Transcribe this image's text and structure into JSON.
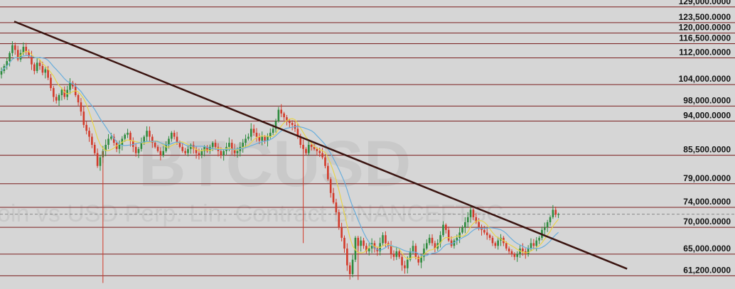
{
  "chart_data": {
    "type": "candlestick",
    "symbol_watermark": "BTCUSD",
    "subtitle_watermark": "oin vs USD Perp. Lin. Contract BINANCEFTSC",
    "colors": {
      "background": "#d6d6d6",
      "level_lines": "#7b1f1f",
      "trendline": "#3a1410",
      "up": "#2e8b3e",
      "down": "#d23a2a",
      "ma_fast": "#e8d44a",
      "ma_slow": "#6aaedc",
      "current_price_line": "#888888"
    },
    "y_axis": {
      "min": 59000,
      "max": 131500,
      "side": "right",
      "tick_labels": [
        {
          "value": 129000,
          "label": "129,000.0000"
        },
        {
          "value": 123500,
          "label": "123,500.0000"
        },
        {
          "value": 120000,
          "label": "120,000.0000"
        },
        {
          "value": 116500,
          "label": "116,500.0000"
        },
        {
          "value": 112000,
          "label": "112,000.0000"
        },
        {
          "value": 104000,
          "label": "104,000.0000"
        },
        {
          "value": 98000,
          "label": "98,000.0000"
        },
        {
          "value": 94000,
          "label": "94,000.0000"
        },
        {
          "value": 85500,
          "label": "85,500.0000"
        },
        {
          "value": 79000,
          "label": "79,000.0000"
        },
        {
          "value": 74000,
          "label": "74,000.0000"
        },
        {
          "value": 70000,
          "label": "70,000.0000"
        },
        {
          "value": 65000,
          "label": "65,000.0000"
        },
        {
          "value": 61200,
          "label": "61,200.0000"
        }
      ]
    },
    "horizontal_levels": [
      129000,
      123500,
      120000,
      116500,
      112000,
      104000,
      98000,
      94000,
      85500,
      79000,
      74000,
      70000,
      65000,
      61200
    ],
    "current_price": 72600,
    "trendline": {
      "from": {
        "bar": 0,
        "price": 123900
      },
      "to": {
        "bar": 213,
        "price": 62400
      }
    },
    "candles_close": [
      108000,
      109500,
      111000,
      113500,
      116000,
      114500,
      111500,
      113500,
      115500,
      114000,
      112500,
      110000,
      108000,
      110500,
      109500,
      107500,
      108500,
      106000,
      103000,
      100500,
      99500,
      101000,
      102500,
      100500,
      102500,
      104500,
      103500,
      101000,
      99000,
      96500,
      93000,
      91500,
      90000,
      88000,
      86000,
      83000,
      85000,
      86500,
      88000,
      89500,
      90000,
      88500,
      87000,
      88000,
      89500,
      90500,
      91000,
      89000,
      87500,
      86000,
      87000,
      88500,
      90000,
      91500,
      90000,
      88500,
      87500,
      86500,
      85500,
      86500,
      88000,
      89500,
      91000,
      90000,
      88500,
      87500,
      86500,
      86000,
      87000,
      88000,
      87000,
      86000,
      85500,
      86500,
      87500,
      86500,
      87500,
      88500,
      87500,
      86500,
      85500,
      86500,
      87500,
      88500,
      87000,
      86000,
      86500,
      87500,
      88500,
      89500,
      90000,
      92000,
      91000,
      90000,
      89000,
      90000,
      89000,
      90000,
      91000,
      92000,
      94000,
      97000,
      96000,
      95000,
      94000,
      93500,
      93000,
      92000,
      90000,
      88000,
      87000,
      86000,
      88000,
      87500,
      87000,
      86500,
      86000,
      85000,
      83000,
      80000,
      77000,
      75000,
      73000,
      70000,
      68000,
      66000,
      63000,
      61500,
      64000,
      68000,
      66500,
      67500,
      66500,
      65500,
      66000,
      67000,
      66000,
      65500,
      67000,
      68500,
      67000,
      66500,
      65000,
      64500,
      65500,
      64500,
      63000,
      62500,
      64000,
      65500,
      66500,
      64500,
      63500,
      64500,
      66000,
      67000,
      68000,
      67000,
      66000,
      67000,
      68500,
      70500,
      69500,
      67500,
      66500,
      67500,
      68000,
      69000,
      70000,
      71000,
      72000,
      73500,
      72000,
      71000,
      70000,
      69500,
      69000,
      68500,
      68000,
      67000,
      66500,
      67500,
      68000,
      67000,
      66000,
      65500,
      65000,
      64500,
      65000,
      66000,
      65500,
      65000,
      66000,
      67000,
      66500,
      67500,
      68000,
      69500,
      70000,
      71000,
      72000,
      73500,
      72500,
      72600
    ]
  }
}
